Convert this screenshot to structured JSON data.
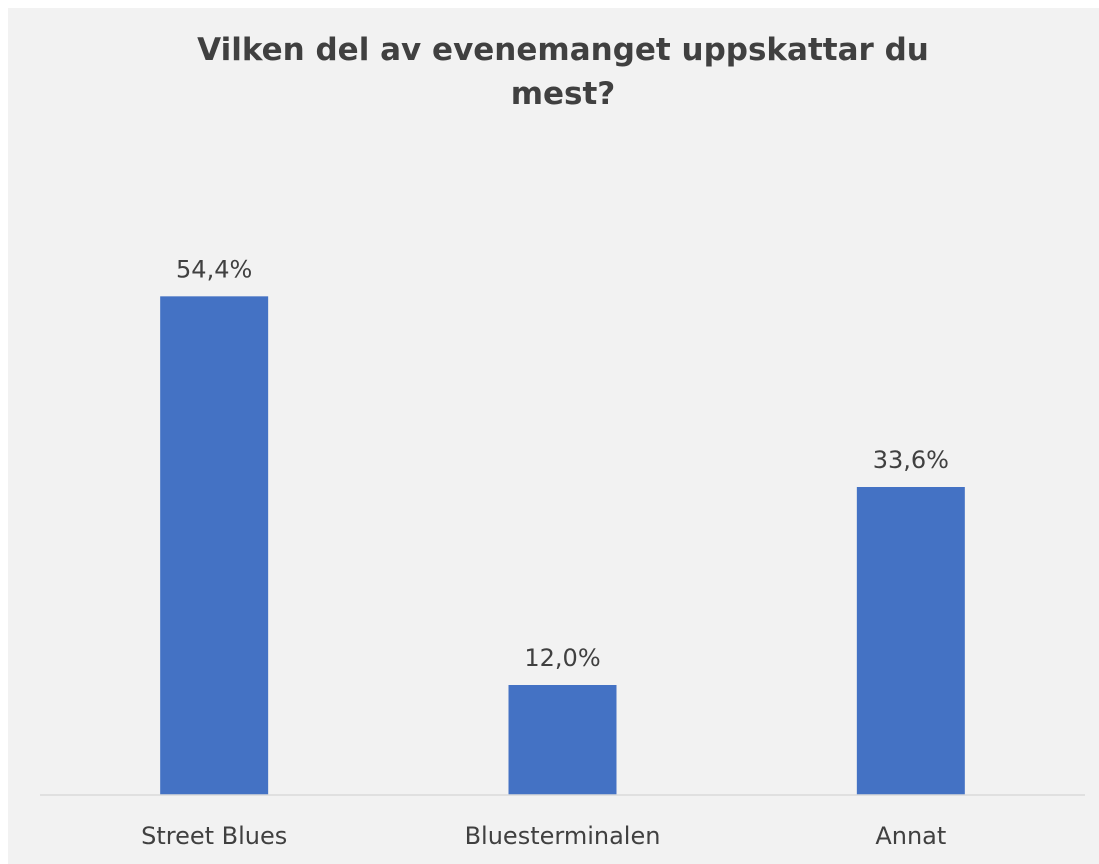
{
  "chart_data": {
    "type": "bar",
    "title": "Vilken del av evenemanget uppskattar du mest?",
    "categories": [
      "Street Blues",
      "Bluesterminalen",
      "Annat"
    ],
    "values": [
      54.4,
      12.0,
      33.6
    ],
    "value_labels": [
      "54,4%",
      "12,0%",
      "33,6%"
    ],
    "color": "#4472c4",
    "ylim": [
      0,
      60
    ]
  }
}
